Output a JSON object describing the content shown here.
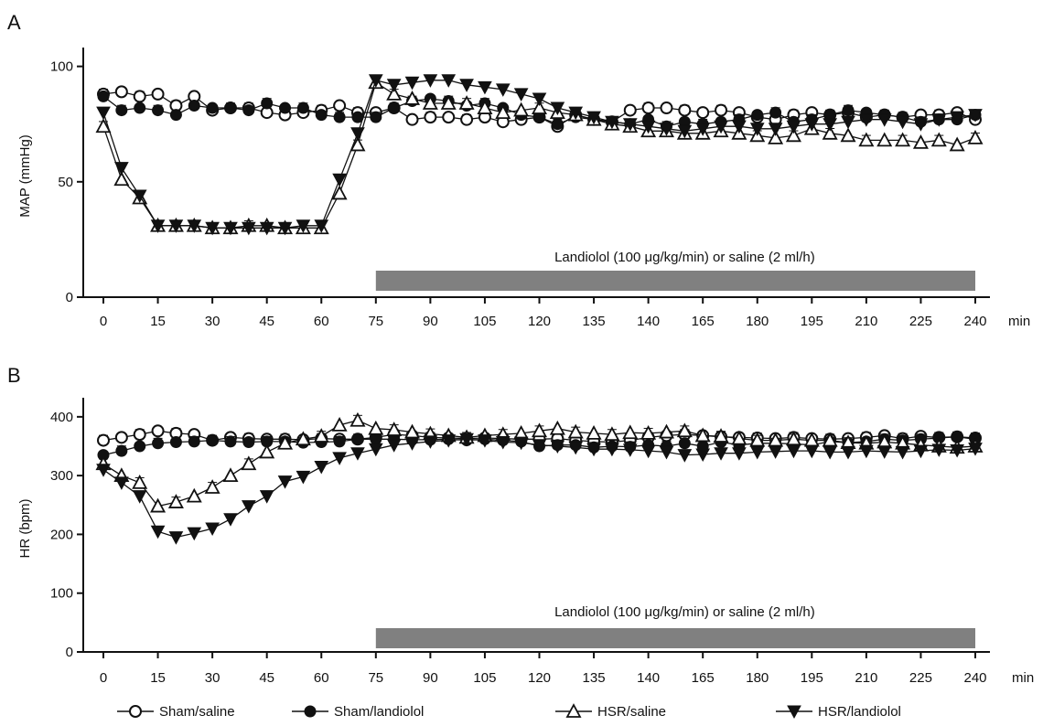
{
  "legend_items": [
    {
      "label": "Sham/saline",
      "marker": "circle-open"
    },
    {
      "label": "Sham/landiolol",
      "marker": "circle-filled"
    },
    {
      "label": "HSR/saline",
      "marker": "triangle-up-open"
    },
    {
      "label": "HSR/landiolol",
      "marker": "triangle-down-filled"
    }
  ],
  "chart_data": [
    {
      "type": "line",
      "panel_label": "A",
      "ylabel": "MAP (mmHg)",
      "xunit": "min",
      "ylim": [
        0,
        105
      ],
      "yticks": [
        0,
        50,
        100
      ],
      "xtick_labels": [
        "0",
        "15",
        "30",
        "45",
        "60",
        "75",
        "90",
        "105",
        "120",
        "135",
        "140",
        "165",
        "180",
        "195",
        "210",
        "225",
        "240"
      ],
      "x": [
        0,
        5,
        10,
        15,
        20,
        25,
        30,
        35,
        40,
        45,
        50,
        55,
        60,
        65,
        70,
        75,
        80,
        85,
        90,
        95,
        100,
        105,
        110,
        115,
        120,
        125,
        130,
        135,
        140,
        145,
        150,
        155,
        160,
        165,
        170,
        175,
        180,
        185,
        190,
        195,
        200,
        205,
        210,
        215,
        220,
        225,
        230,
        235,
        240
      ],
      "series": [
        {
          "name": "Sham/saline",
          "values": [
            88,
            89,
            87,
            88,
            83,
            87,
            81,
            82,
            82,
            80,
            79,
            80,
            81,
            83,
            80,
            80,
            82,
            77,
            78,
            78,
            77,
            78,
            76,
            77,
            78,
            74,
            79,
            77,
            76,
            81,
            82,
            82,
            81,
            80,
            81,
            80,
            78,
            77,
            79,
            80,
            79,
            80,
            78,
            79,
            78,
            79,
            79,
            80,
            77
          ]
        },
        {
          "name": "Sham/landiolol",
          "values": [
            87,
            81,
            82,
            81,
            79,
            83,
            82,
            82,
            81,
            84,
            82,
            82,
            79,
            78,
            78,
            78,
            82,
            85,
            86,
            85,
            83,
            84,
            82,
            79,
            78,
            75,
            78,
            77,
            76,
            75,
            77,
            74,
            76,
            75,
            76,
            77,
            79,
            80,
            76,
            77,
            79,
            81,
            80,
            79,
            78,
            76,
            77,
            77,
            79
          ]
        },
        {
          "name": "HSR/saline",
          "values": [
            74,
            51,
            43,
            31,
            31,
            31,
            30,
            30,
            31,
            31,
            30,
            30,
            30,
            45,
            66,
            93,
            88,
            86,
            84,
            84,
            84,
            82,
            80,
            81,
            82,
            80,
            79,
            77,
            75,
            74,
            72,
            72,
            71,
            71,
            72,
            71,
            70,
            69,
            70,
            73,
            71,
            70,
            68,
            68,
            68,
            67,
            68,
            66,
            69
          ]
        },
        {
          "name": "HSR/landiolol",
          "values": [
            80,
            56,
            44,
            31,
            31,
            31,
            30,
            30,
            30,
            30,
            30,
            31,
            31,
            51,
            71,
            94,
            92,
            93,
            94,
            94,
            92,
            91,
            90,
            88,
            86,
            82,
            80,
            78,
            76,
            75,
            74,
            73,
            72,
            73,
            74,
            74,
            73,
            73,
            74,
            75,
            75,
            76,
            77,
            77,
            76,
            75,
            77,
            78,
            79
          ]
        }
      ],
      "annotation": "Landiolol (100 μg/kg/min) or saline (2 ml/h)",
      "bar_range": [
        75,
        240
      ]
    },
    {
      "type": "line",
      "panel_label": "B",
      "ylabel": "HR (bpm)",
      "xunit": "min",
      "ylim": [
        0,
        420
      ],
      "yticks": [
        0,
        100,
        200,
        300,
        400
      ],
      "xtick_labels": [
        "0",
        "15",
        "30",
        "45",
        "60",
        "75",
        "90",
        "105",
        "120",
        "135",
        "140",
        "165",
        "180",
        "195",
        "210",
        "225",
        "240"
      ],
      "x": [
        0,
        5,
        10,
        15,
        20,
        25,
        30,
        35,
        40,
        45,
        50,
        55,
        60,
        65,
        70,
        75,
        80,
        85,
        90,
        95,
        100,
        105,
        110,
        115,
        120,
        125,
        130,
        135,
        140,
        145,
        150,
        155,
        160,
        165,
        170,
        175,
        180,
        185,
        190,
        195,
        200,
        205,
        210,
        215,
        220,
        225,
        230,
        235,
        240
      ],
      "series": [
        {
          "name": "Sham/saline",
          "values": [
            360,
            365,
            370,
            376,
            372,
            370,
            360,
            365,
            363,
            362,
            362,
            361,
            363,
            362,
            362,
            365,
            370,
            368,
            365,
            364,
            363,
            364,
            363,
            362,
            362,
            363,
            360,
            358,
            357,
            360,
            365,
            368,
            370,
            368,
            366,
            365,
            364,
            363,
            365,
            363,
            362,
            363,
            365,
            368,
            363,
            367,
            365,
            366,
            364
          ]
        },
        {
          "name": "Sham/landiolol",
          "values": [
            335,
            342,
            350,
            355,
            357,
            358,
            360,
            358,
            357,
            358,
            358,
            356,
            357,
            358,
            362,
            362,
            362,
            361,
            361,
            362,
            360,
            362,
            360,
            358,
            350,
            352,
            352,
            348,
            350,
            349,
            352,
            350,
            355,
            350,
            357,
            352,
            355,
            355,
            354,
            352,
            358,
            356,
            358,
            362,
            360,
            362,
            364,
            366,
            362
          ]
        },
        {
          "name": "HSR/saline",
          "values": [
            320,
            300,
            288,
            248,
            255,
            265,
            280,
            300,
            320,
            340,
            355,
            362,
            367,
            386,
            394,
            380,
            378,
            374,
            371,
            368,
            365,
            368,
            370,
            372,
            376,
            380,
            374,
            372,
            370,
            373,
            372,
            374,
            376,
            368,
            367,
            363,
            360,
            360,
            362,
            360,
            360,
            356,
            355,
            357,
            355,
            352,
            350,
            348,
            350
          ]
        },
        {
          "name": "HSR/landiolol",
          "values": [
            310,
            288,
            265,
            205,
            195,
            202,
            210,
            226,
            248,
            265,
            290,
            298,
            315,
            330,
            338,
            345,
            352,
            355,
            358,
            360,
            362,
            360,
            357,
            356,
            352,
            350,
            348,
            345,
            345,
            344,
            342,
            340,
            335,
            336,
            338,
            338,
            340,
            341,
            342,
            342,
            340,
            340,
            342,
            341,
            340,
            342,
            344,
            343,
            346
          ]
        }
      ],
      "annotation": "Landiolol (100 μg/kg/min) or saline (2 ml/h)",
      "bar_range": [
        75,
        240
      ]
    }
  ]
}
